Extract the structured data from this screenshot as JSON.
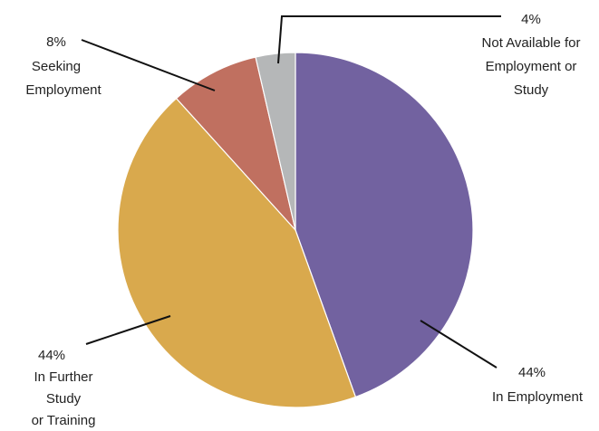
{
  "chart_data": {
    "type": "pie",
    "slices": [
      {
        "label_lines": [
          "44%",
          "In Employment"
        ],
        "value": 44.5,
        "color": "#7262a0"
      },
      {
        "label_lines": [
          "44%",
          "In Further",
          "Study",
          "or Training"
        ],
        "value": 43.8,
        "color": "#d9a94d"
      },
      {
        "label_lines": [
          "8%",
          "Seeking",
          "Employment"
        ],
        "value": 8.1,
        "color": "#c07060"
      },
      {
        "label_lines": [
          "4%",
          "Not Available for",
          "Employment or",
          "Study"
        ],
        "value": 3.6,
        "color": "#b5b7b8"
      }
    ]
  }
}
